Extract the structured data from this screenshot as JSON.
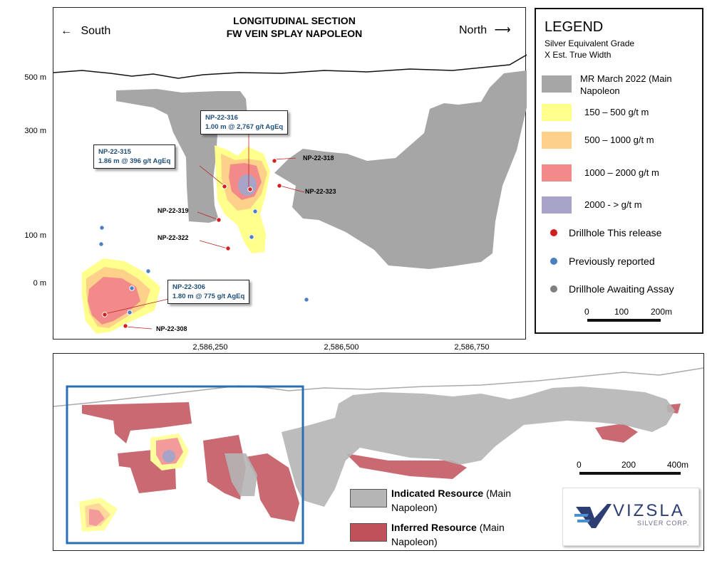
{
  "map": {
    "title_line1": "LONGITUDINAL SECTION",
    "title_line2": "FW VEIN SPLAY NAPOLEON",
    "south_label": "South",
    "north_label": "North",
    "south_arrow": "←",
    "north_arrow": "⟶",
    "y_axis": [
      "500 m",
      "300 m",
      "100 m",
      "0 m"
    ],
    "x_axis": [
      "2,586,250",
      "2,586,500",
      "2,586,750"
    ],
    "drillholes": {
      "np_316": "NP-22-316",
      "np_315": "NP-22-315",
      "np_318": "NP-22-318",
      "np_323": "NP-22-323",
      "np_319": "NP-22-319",
      "np_322": "NP-22-322",
      "np_306": "NP-22-306",
      "np_308": "NP-22-308"
    },
    "callouts": {
      "c316_id": "NP-22-316",
      "c316_val": "1.00 m @ 2,767 g/t AgEq",
      "c315_id": "NP-22-315",
      "c315_val": "1.86 m @ 396 g/t AgEq",
      "c306_id": "NP-22-306",
      "c306_val": "1.80 m @ 775 g/t AgEq"
    }
  },
  "legend": {
    "title": "LEGEND",
    "subtitle_line1": "Silver Equivalent Grade",
    "subtitle_line2": "X Est. True Width",
    "items": [
      {
        "label_line1": "MR March 2022 (Main",
        "label_line2": "Napoleon",
        "color": "#a6a6a6"
      },
      {
        "label_line1": "150 – 500 g/t m",
        "color": "#ffff8c"
      },
      {
        "label_line1": "500 – 1000 g/t m",
        "color": "#fdd18a"
      },
      {
        "label_line1": "1000 – 2000 g/t m",
        "color": "#f28a8a"
      },
      {
        "label_line1": "2000 - > g/t m",
        "color": "#a8a4c8"
      }
    ],
    "dots": [
      {
        "label": "Drillhole This release",
        "color": "#d21f1f"
      },
      {
        "label": "Previously reported",
        "color": "#4a7fc1"
      },
      {
        "label": "Drillhole Awaiting Assay",
        "color": "#808080"
      }
    ],
    "scale": {
      "ticks": [
        "0",
        "100",
        "200m"
      ]
    }
  },
  "bottom": {
    "scale": {
      "ticks": [
        "0",
        "200",
        "400m"
      ]
    },
    "indicated_bold": "Indicated Resource",
    "indicated_rest": " (Main",
    "indicated_line2": "Napoleon)",
    "inferred_bold": "Inferred Resource",
    "inferred_rest": " (Main",
    "inferred_line2": "Napoleon)",
    "indicated_color": "#b5b5b5",
    "inferred_color": "#c0505a",
    "box_color": "#2a6fb5",
    "logo_line1": "VIZSLA",
    "logo_line2": "SILVER CORP."
  }
}
